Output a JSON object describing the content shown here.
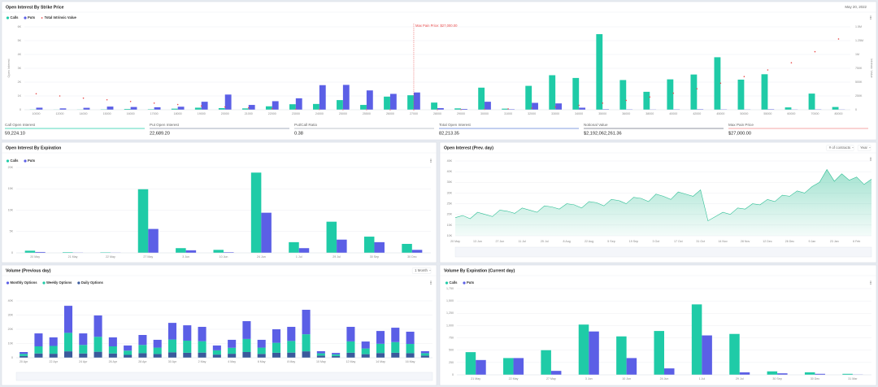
{
  "chart_data": [
    {
      "type": "bar",
      "title": "Open Interest By Strike Price",
      "date": "May 20, 2022",
      "ylabel": "Open Interest",
      "y2label": "Intrinsic Value",
      "grid": true,
      "categories": [
        "10000",
        "12000",
        "14000",
        "15000",
        "16000",
        "17000",
        "18000",
        "19000",
        "20000",
        "21000",
        "22000",
        "23000",
        "24000",
        "25000",
        "25500",
        "26000",
        "27000",
        "28000",
        "29000",
        "30000",
        "31000",
        "32000",
        "33000",
        "34000",
        "35000",
        "36000",
        "38000",
        "40000",
        "42000",
        "45000",
        "50000",
        "55000",
        "60000",
        "70000",
        "80000"
      ],
      "series": [
        {
          "name": "Calls",
          "color": "#1fcba7",
          "values": [
            20,
            10,
            15,
            30,
            60,
            40,
            80,
            150,
            120,
            100,
            250,
            400,
            420,
            700,
            350,
            950,
            1050,
            520,
            100,
            1600,
            80,
            1730,
            2500,
            2300,
            5470,
            2150,
            1300,
            2200,
            2550,
            3800,
            2180,
            2570,
            170,
            1170,
            200
          ]
        },
        {
          "name": "Puts",
          "color": "#5b5fe6",
          "values": [
            150,
            100,
            140,
            230,
            200,
            180,
            220,
            580,
            1100,
            350,
            620,
            830,
            1780,
            1800,
            1400,
            1150,
            1250,
            120,
            60,
            580,
            40,
            500,
            460,
            150,
            40,
            30,
            20,
            30,
            40,
            30,
            20,
            40,
            20,
            30,
            20
          ]
        },
        {
          "name": "Total Intrinsic Value",
          "color": "#e84c4c",
          "axis": "y2",
          "values": [
            290000,
            250000,
            210000,
            180000,
            150000,
            120000,
            95000,
            70000,
            50000,
            35000,
            20000,
            10000,
            5000,
            2000,
            1000,
            500,
            0,
            1000,
            3000,
            8000,
            15000,
            30000,
            50000,
            80000,
            120000,
            170000,
            230000,
            300000,
            380000,
            480000,
            600000,
            720000,
            850000,
            1050000,
            1280000
          ]
        }
      ],
      "ylim": [
        0,
        6000
      ],
      "yticks": [
        0,
        {
          "value": 1000,
          "label": "1K"
        },
        {
          "value": 2000,
          "label": "2K"
        },
        {
          "value": 3000,
          "label": "3K"
        },
        {
          "value": 4000,
          "label": "4K"
        },
        {
          "value": 5000,
          "label": "5K"
        },
        {
          "value": 6000,
          "label": "6K"
        }
      ],
      "y2lim": [
        0,
        1500000
      ],
      "y2ticks": [
        0,
        {
          "value": 250000,
          "label": "250K"
        },
        {
          "value": 500000,
          "label": "500K"
        },
        {
          "value": 750000,
          "label": "750K"
        },
        {
          "value": 1000000,
          "label": "1M"
        },
        {
          "value": 1250000,
          "label": "1.25M"
        },
        {
          "value": 1500000,
          "label": "1.5M"
        }
      ],
      "annotation": {
        "text": "Max Pain Price: $27,000.00",
        "x": "27000"
      },
      "stats": [
        {
          "label": "Call Open Interest",
          "value": "59,224.10"
        },
        {
          "label": "Put Open Interest",
          "value": "22,689.20"
        },
        {
          "label": "Put/Call Ratio",
          "value": "0.38"
        },
        {
          "label": "Total Open Interest",
          "value": "82,213.35"
        },
        {
          "label": "Notional Value",
          "value": "$2,192,062,261.36"
        },
        {
          "label": "Max Pain Price",
          "value": "$27,000.00"
        }
      ]
    },
    {
      "type": "bar",
      "title": "Open Interest By Expiration",
      "grid": true,
      "categories": [
        "20 May",
        "21 May",
        "22 May",
        "27 May",
        "3 Jun",
        "10 Jun",
        "24 Jun",
        "1 Jul",
        "29 Jul",
        "30 Sep",
        "30 Dec"
      ],
      "series": [
        {
          "name": "Calls",
          "color": "#1fcba7",
          "values": [
            500,
            150,
            120,
            14900,
            1100,
            700,
            18800,
            2500,
            7300,
            3800,
            2100
          ]
        },
        {
          "name": "Puts",
          "color": "#5b5fe6",
          "values": [
            200,
            60,
            50,
            5600,
            600,
            150,
            9400,
            1100,
            3100,
            2500,
            700
          ]
        }
      ],
      "ylim": [
        0,
        20000
      ],
      "yticks": [
        0,
        {
          "value": 5000,
          "label": "5K"
        },
        {
          "value": 10000,
          "label": "10K"
        },
        {
          "value": 15000,
          "label": "15K"
        },
        {
          "value": 20000,
          "label": "20K"
        }
      ]
    },
    {
      "type": "area",
      "title": "Open Interest (Prev. day)",
      "controls": [
        "# of contracts",
        "Year"
      ],
      "grid": true,
      "color": "#2fbf95",
      "categories": [
        "20 May",
        null,
        null,
        "13 Jun",
        null,
        null,
        "27 Jun",
        null,
        null,
        "11 Jul",
        null,
        null,
        "25 Jul",
        null,
        null,
        "8 Aug",
        null,
        null,
        "22 Aug",
        null,
        null,
        "5 Sep",
        null,
        null,
        "19 Sep",
        null,
        null,
        "3 Oct",
        null,
        null,
        "17 Oct",
        null,
        null,
        "31 Oct",
        null,
        null,
        "14 Nov",
        null,
        null,
        "28 Nov",
        null,
        null,
        "12 Dec",
        null,
        null,
        "26 Dec",
        null,
        null,
        "9 Jan",
        null,
        null,
        "23 Jan",
        null,
        null,
        "6 Feb",
        null,
        null
      ],
      "values": [
        18500,
        19500,
        18000,
        21000,
        20000,
        19000,
        22000,
        21500,
        20500,
        23000,
        22000,
        21000,
        24000,
        23500,
        22500,
        25000,
        24500,
        23000,
        26000,
        25500,
        24000,
        27000,
        26500,
        25000,
        28000,
        27500,
        26000,
        29500,
        28500,
        27000,
        30500,
        29500,
        28500,
        31500,
        17000,
        19000,
        21000,
        20000,
        23000,
        22500,
        25000,
        24500,
        27000,
        26000,
        29000,
        28500,
        31000,
        30000,
        33000,
        35000,
        41000,
        35500,
        39000,
        36000,
        37500,
        34000,
        36500
      ],
      "ylim": [
        10000,
        45000
      ],
      "yticks": [
        {
          "value": 10000,
          "label": "10K"
        },
        {
          "value": 15000,
          "label": "15K"
        },
        {
          "value": 20000,
          "label": "20K"
        },
        {
          "value": 25000,
          "label": "25K"
        },
        {
          "value": 30000,
          "label": "30K"
        },
        {
          "value": 35000,
          "label": "35K"
        },
        {
          "value": 40000,
          "label": "40K"
        },
        {
          "value": 45000,
          "label": "45K"
        }
      ]
    },
    {
      "type": "stacked",
      "title": "Volume (Previous day)",
      "controls": [
        "1 Month"
      ],
      "grid": true,
      "categories": [
        "20 Apr",
        null,
        "22 Apr",
        null,
        "24 Apr",
        null,
        "26 Apr",
        null,
        "28 Apr",
        null,
        "30 Apr",
        null,
        "2 May",
        null,
        "4 May",
        null,
        "6 May",
        null,
        "8 May",
        null,
        "10 May",
        null,
        "12 May",
        null,
        "14 May",
        null,
        "16 May",
        null
      ],
      "series": [
        {
          "name": "Monthly Options",
          "color": "#5b5fe6",
          "values": [
            1300,
            9100,
            6000,
            19000,
            8100,
            15000,
            6300,
            3600,
            7000,
            5500,
            11700,
            10800,
            10100,
            3400,
            5600,
            12500,
            5500,
            9500,
            9900,
            17200,
            1500,
            1000,
            10200,
            4900,
            9000,
            10100,
            8600,
            1400
          ]
        },
        {
          "name": "Weekly Options",
          "color": "#1fcba7",
          "values": [
            1500,
            5000,
            5500,
            13000,
            6000,
            10500,
            5000,
            3000,
            5800,
            4500,
            9000,
            8500,
            8000,
            3000,
            4200,
            9200,
            4400,
            7000,
            8200,
            12000,
            1600,
            1200,
            8000,
            4000,
            6500,
            7500,
            6500,
            1700
          ]
        },
        {
          "name": "Daily Options",
          "color": "#3a5a9c",
          "values": [
            1200,
            3000,
            2800,
            4500,
            3000,
            4200,
            3000,
            2000,
            3200,
            2600,
            3800,
            3500,
            3600,
            2200,
            2800,
            4000,
            2700,
            3500,
            3600,
            4500,
            1500,
            1200,
            3500,
            2500,
            3300,
            3500,
            3200,
            1500
          ]
        }
      ],
      "ylim": [
        0,
        40000
      ],
      "yticks": [
        0,
        {
          "value": 10000,
          "label": "10K"
        },
        {
          "value": 20000,
          "label": "20K"
        },
        {
          "value": 30000,
          "label": "30K"
        },
        {
          "value": 40000,
          "label": "40K"
        }
      ]
    },
    {
      "type": "bar",
      "title": "Volume By Expiration (Current day)",
      "grid": true,
      "categories": [
        "21 May",
        "22 May",
        "27 May",
        "3 Jun",
        "10 Jun",
        "24 Jun",
        "1 Jul",
        "29 Jul",
        "30 Sep",
        "30 Dec",
        "31 Mar"
      ],
      "series": [
        {
          "name": "Calls",
          "color": "#1fcba7",
          "values": [
            460,
            340,
            500,
            1020,
            780,
            890,
            1430,
            830,
            70,
            50,
            20
          ]
        },
        {
          "name": "Puts",
          "color": "#5b5fe6",
          "values": [
            300,
            340,
            80,
            880,
            340,
            130,
            800,
            50,
            30,
            20,
            5
          ]
        }
      ],
      "ylim": [
        0,
        1750
      ],
      "yticks": [
        0,
        250,
        500,
        750,
        {
          "value": 1000,
          "label": "1,000"
        },
        {
          "value": 1250,
          "label": "1,250"
        },
        {
          "value": 1500,
          "label": "1,500"
        },
        {
          "value": 1750,
          "label": "1,750"
        }
      ]
    }
  ]
}
